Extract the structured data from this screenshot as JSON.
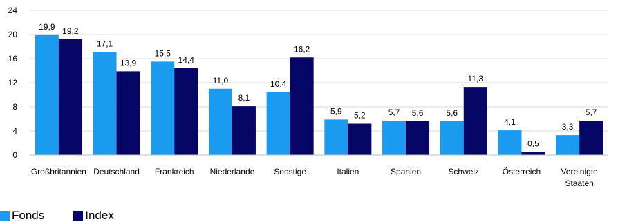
{
  "chart_data": {
    "type": "bar",
    "categories": [
      "Großbritannien",
      "Deutschland",
      "Frankreich",
      "Niederlande",
      "Sonstige",
      "Italien",
      "Spanien",
      "Schweiz",
      "Österreich",
      "Vereinigte Staaten"
    ],
    "category_lines": [
      [
        "Großbritannien"
      ],
      [
        "Deutschland"
      ],
      [
        "Frankreich"
      ],
      [
        "Niederlande"
      ],
      [
        "Sonstige"
      ],
      [
        "Italien"
      ],
      [
        "Spanien"
      ],
      [
        "Schweiz"
      ],
      [
        "Österreich"
      ],
      [
        "Vereinigte",
        "Staaten"
      ]
    ],
    "series": [
      {
        "name": "Fonds",
        "color": "#1a9bf0",
        "values": [
          19.9,
          17.1,
          15.5,
          11.0,
          10.4,
          5.9,
          5.7,
          5.6,
          4.1,
          3.3
        ],
        "labels": [
          "19,9",
          "17,1",
          "15,5",
          "11,0",
          "10,4",
          "5,9",
          "5,7",
          "5,6",
          "4,1",
          "3,3"
        ]
      },
      {
        "name": "Index",
        "color": "#060667",
        "values": [
          19.2,
          13.9,
          14.4,
          8.1,
          16.2,
          5.2,
          5.6,
          11.3,
          0.5,
          5.7
        ],
        "labels": [
          "19,2",
          "13,9",
          "14,4",
          "8,1",
          "16,2",
          "5,2",
          "5,6",
          "11,3",
          "0,5",
          "5,7"
        ]
      }
    ],
    "yticks": [
      0,
      4,
      8,
      12,
      16,
      20,
      24
    ],
    "ylim": [
      0,
      24
    ],
    "grid": true,
    "legend": "bottom-left"
  }
}
